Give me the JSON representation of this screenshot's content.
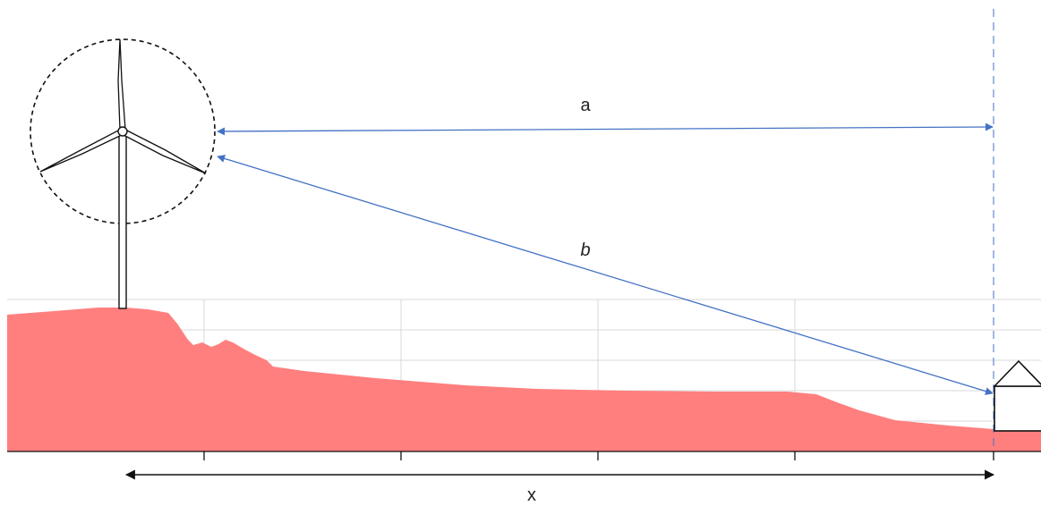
{
  "labels": {
    "horizontal_distance": "a",
    "slant_distance": "b",
    "ground_distance": "x"
  },
  "colors": {
    "terrain_fill": "#ff7f7f",
    "measure_arrow": "#4472c4",
    "x_arrow": "#111111",
    "grid_line": "#d9d9d9",
    "outline": "#111111"
  },
  "icons": {
    "turbine": "wind-turbine-icon",
    "house": "house-icon"
  }
}
